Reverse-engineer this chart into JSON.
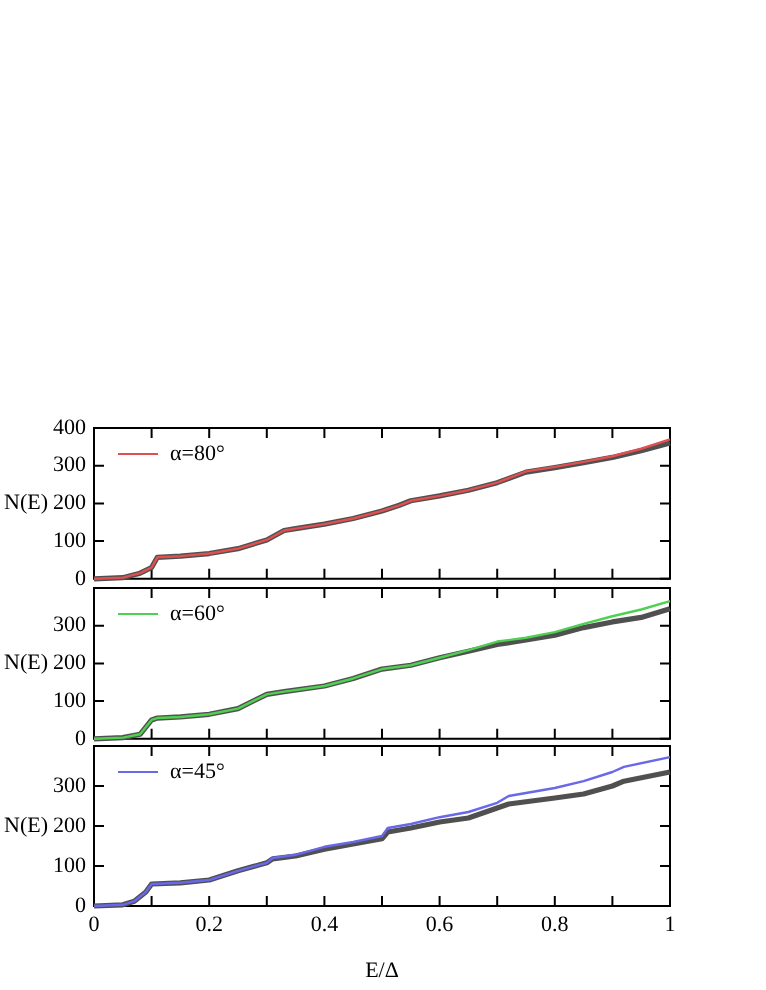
{
  "chart_data": [
    {
      "type": "line",
      "ylabel": "N(E)",
      "xlim": [
        0,
        1
      ],
      "ylim": [
        0,
        400
      ],
      "xticks": [
        {
          "value": 0,
          "label": null
        },
        {
          "value": 0.1,
          "label": null
        },
        {
          "value": 0.2,
          "label": null
        },
        {
          "value": 0.3,
          "label": null
        },
        {
          "value": 0.4,
          "label": null
        },
        {
          "value": 0.5,
          "label": null
        },
        {
          "value": 0.6,
          "label": null
        },
        {
          "value": 0.7,
          "label": null
        },
        {
          "value": 0.8,
          "label": null
        },
        {
          "value": 0.9,
          "label": null
        },
        {
          "value": 1,
          "label": null
        }
      ],
      "yticks": [
        0,
        100,
        200,
        300,
        400
      ],
      "tick_labels": "y",
      "grid": false,
      "legend": "top left",
      "marker": "none",
      "series": [
        {
          "color": "#505050",
          "x": [
            0,
            0.05,
            0.08,
            0.1,
            0.11,
            0.15,
            0.2,
            0.25,
            0.3,
            0.33,
            0.35,
            0.4,
            0.45,
            0.5,
            0.53,
            0.55,
            0.6,
            0.65,
            0.7,
            0.75,
            0.8,
            0.85,
            0.9,
            0.95,
            1.0
          ],
          "values": [
            0,
            3,
            15,
            30,
            57,
            60,
            67,
            80,
            103,
            128,
            133,
            145,
            160,
            180,
            195,
            207,
            220,
            235,
            255,
            283,
            295,
            308,
            322,
            340,
            360
          ]
        },
        {
          "name": "α=80°",
          "color": "#e05050",
          "x": [
            0,
            0.05,
            0.08,
            0.1,
            0.11,
            0.15,
            0.2,
            0.25,
            0.3,
            0.33,
            0.35,
            0.4,
            0.45,
            0.5,
            0.53,
            0.55,
            0.6,
            0.65,
            0.7,
            0.75,
            0.8,
            0.85,
            0.9,
            0.95,
            1.0
          ],
          "values": [
            0,
            3,
            15,
            30,
            57,
            60,
            67,
            80,
            103,
            128,
            133,
            145,
            160,
            180,
            195,
            207,
            220,
            235,
            255,
            285,
            297,
            310,
            325,
            345,
            370
          ]
        }
      ]
    },
    {
      "type": "line",
      "ylabel": "N(E)",
      "xlim": [
        0,
        1
      ],
      "ylim": [
        0,
        400
      ],
      "xticks": [
        {
          "value": 0,
          "label": null
        },
        {
          "value": 0.1,
          "label": null
        },
        {
          "value": 0.2,
          "label": null
        },
        {
          "value": 0.3,
          "label": null
        },
        {
          "value": 0.4,
          "label": null
        },
        {
          "value": 0.5,
          "label": null
        },
        {
          "value": 0.6,
          "label": null
        },
        {
          "value": 0.7,
          "label": null
        },
        {
          "value": 0.8,
          "label": null
        },
        {
          "value": 0.9,
          "label": null
        },
        {
          "value": 1,
          "label": null
        }
      ],
      "yticks": [
        0,
        100,
        200,
        300,
        {
          "value": 400,
          "label": null
        }
      ],
      "tick_labels": "y",
      "grid": false,
      "legend": "top left",
      "marker": "none",
      "series": [
        {
          "color": "#505050",
          "x": [
            0,
            0.05,
            0.08,
            0.1,
            0.11,
            0.15,
            0.2,
            0.25,
            0.3,
            0.33,
            0.4,
            0.45,
            0.5,
            0.55,
            0.6,
            0.65,
            0.7,
            0.75,
            0.8,
            0.85,
            0.9,
            0.95,
            1.0
          ],
          "values": [
            0,
            3,
            12,
            50,
            55,
            58,
            65,
            80,
            118,
            125,
            140,
            160,
            185,
            195,
            215,
            232,
            250,
            262,
            275,
            295,
            310,
            322,
            345
          ]
        },
        {
          "name": "α=60°",
          "color": "#50d050",
          "x": [
            0,
            0.05,
            0.08,
            0.1,
            0.11,
            0.15,
            0.2,
            0.25,
            0.3,
            0.33,
            0.4,
            0.45,
            0.5,
            0.55,
            0.6,
            0.65,
            0.7,
            0.75,
            0.8,
            0.85,
            0.9,
            0.95,
            1.0
          ],
          "values": [
            0,
            3,
            12,
            50,
            55,
            58,
            65,
            80,
            118,
            125,
            140,
            160,
            185,
            195,
            215,
            235,
            258,
            268,
            283,
            305,
            325,
            343,
            365
          ]
        }
      ]
    },
    {
      "type": "line",
      "ylabel": "N(E)",
      "xlabel": "E/Δ",
      "xlim": [
        0,
        1
      ],
      "ylim": [
        0,
        400
      ],
      "xticks": [
        0,
        {
          "value": 0.1,
          "label": null
        },
        0.2,
        {
          "value": 0.3,
          "label": null
        },
        0.4,
        {
          "value": 0.5,
          "label": null
        },
        0.6,
        {
          "value": 0.7,
          "label": null
        },
        0.8,
        {
          "value": 0.9,
          "label": null
        },
        1
      ],
      "yticks": [
        0,
        100,
        200,
        300,
        {
          "value": 400,
          "label": null
        }
      ],
      "grid": false,
      "legend": "top left",
      "marker": "none",
      "series": [
        {
          "color": "#505050",
          "x": [
            0,
            0.05,
            0.07,
            0.09,
            0.1,
            0.15,
            0.2,
            0.25,
            0.3,
            0.31,
            0.35,
            0.4,
            0.45,
            0.5,
            0.51,
            0.55,
            0.6,
            0.65,
            0.7,
            0.72,
            0.8,
            0.85,
            0.9,
            0.92,
            1.0
          ],
          "values": [
            0,
            3,
            12,
            35,
            55,
            58,
            65,
            88,
            108,
            118,
            125,
            142,
            155,
            168,
            185,
            195,
            210,
            220,
            245,
            255,
            270,
            280,
            300,
            312,
            335
          ]
        },
        {
          "name": "α=45°",
          "color": "#6868e8",
          "x": [
            0,
            0.05,
            0.07,
            0.09,
            0.1,
            0.15,
            0.2,
            0.25,
            0.3,
            0.31,
            0.35,
            0.4,
            0.45,
            0.5,
            0.51,
            0.55,
            0.6,
            0.65,
            0.7,
            0.72,
            0.8,
            0.85,
            0.9,
            0.92,
            1.0
          ],
          "values": [
            0,
            3,
            12,
            35,
            55,
            58,
            65,
            88,
            108,
            120,
            128,
            148,
            160,
            175,
            195,
            205,
            222,
            235,
            258,
            275,
            295,
            312,
            335,
            348,
            372
          ]
        }
      ]
    }
  ]
}
